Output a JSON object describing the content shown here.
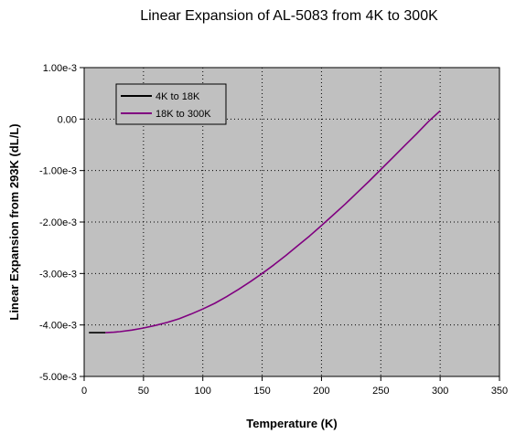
{
  "chart_data": {
    "type": "line",
    "title": "Linear Expansion of AL-5083 from 4K to 300K",
    "xlabel": "Temperature (K)",
    "ylabel": "Linear Expansion from 293K (dL/L)",
    "xlim": [
      0,
      350
    ],
    "ylim": [
      -0.005,
      0.001
    ],
    "x_ticks": [
      0,
      50,
      100,
      150,
      200,
      250,
      300,
      350
    ],
    "x_tick_labels": [
      "0",
      "50",
      "100",
      "150",
      "200",
      "250",
      "300",
      "350"
    ],
    "y_ticks": [
      0.001,
      0,
      -0.001,
      -0.002,
      -0.003,
      -0.004,
      -0.005
    ],
    "y_tick_labels": [
      "1.00e-3",
      "0.00",
      "-1.00e-3",
      "-2.00e-3",
      "-3.00e-3",
      "-4.00e-3",
      "-5.00e-3"
    ],
    "grid": true,
    "legend_position": "top-left",
    "plot_background": "#c0c0c0",
    "series": [
      {
        "name": "4K to 18K",
        "color": "#000000",
        "x": [
          4,
          6,
          8,
          10,
          12,
          14,
          16,
          18
        ],
        "y": [
          -0.00415,
          -0.00415,
          -0.00415,
          -0.00415,
          -0.00415,
          -0.00415,
          -0.00415,
          -0.00415
        ]
      },
      {
        "name": "18K to 300K",
        "color": "#800080",
        "x": [
          18,
          25,
          30,
          40,
          50,
          60,
          70,
          80,
          90,
          100,
          110,
          120,
          130,
          140,
          150,
          160,
          170,
          180,
          190,
          200,
          210,
          220,
          230,
          240,
          250,
          260,
          270,
          280,
          290,
          300
        ],
        "y": [
          -0.00415,
          -0.00414,
          -0.00413,
          -0.0041,
          -0.00406,
          -0.00401,
          -0.00395,
          -0.00388,
          -0.00379,
          -0.00369,
          -0.00358,
          -0.00345,
          -0.00331,
          -0.00316,
          -0.003,
          -0.00283,
          -0.00265,
          -0.00246,
          -0.00227,
          -0.00207,
          -0.00186,
          -0.00165,
          -0.00143,
          -0.00121,
          -0.00098,
          -0.00075,
          -0.00052,
          -0.00029,
          -5e-05,
          0.00016
        ]
      }
    ]
  }
}
